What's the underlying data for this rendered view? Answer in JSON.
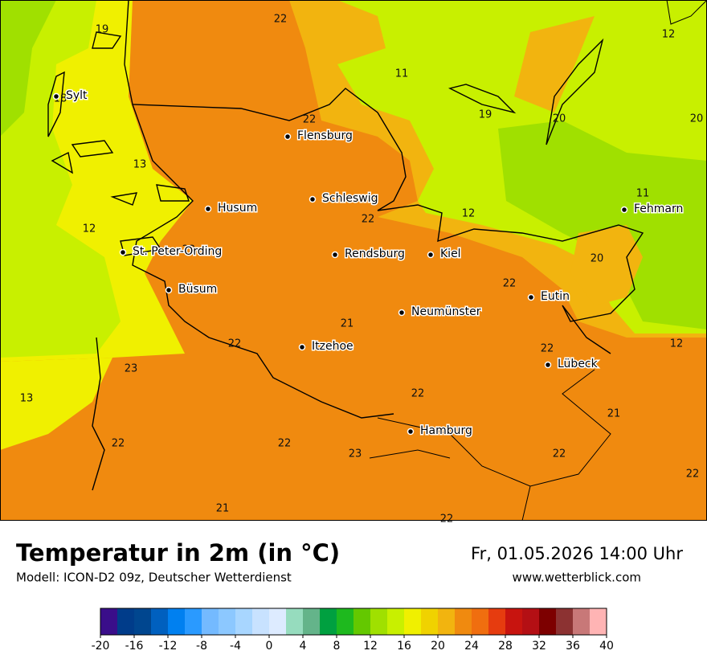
{
  "map": {
    "cities": [
      "Sylt",
      "Flensburg",
      "Schleswig",
      "Husum",
      "St. Peter-Ording",
      "Rendsburg",
      "Kiel",
      "Fehmarn",
      "Eutin",
      "Büsum",
      "Neumünster",
      "Itzehoe",
      "Lübeck",
      "Hamburg"
    ],
    "temperature_labels": [
      22,
      19,
      18,
      11,
      12,
      19,
      20,
      20,
      22,
      13,
      11,
      22,
      12,
      12,
      22,
      20,
      22,
      21,
      22,
      22,
      12,
      23,
      13,
      22,
      21,
      22,
      22,
      23,
      22,
      22,
      21,
      22
    ]
  },
  "footer": {
    "title": "Temperatur in 2m (in °C)",
    "subtitle": "Modell: ICON-D2 09z, Deutscher Wetterdienst",
    "datetime": "Fr, 01.05.2026 14:00 Uhr",
    "website": "www.wetterblick.com"
  },
  "legend": {
    "colors": [
      "#3a0e8a",
      "#003c8a",
      "#00468f",
      "#0060bf",
      "#0080f0",
      "#2a9aff",
      "#74baff",
      "#8cc8ff",
      "#a8d6ff",
      "#c8e2ff",
      "#ddebff",
      "#96dcbe",
      "#64b48a",
      "#00a040",
      "#1eb91e",
      "#64c800",
      "#a0e000",
      "#c8f000",
      "#f0f000",
      "#f0d200",
      "#f2b40f",
      "#f08a0f",
      "#f06e0f",
      "#e63c0f",
      "#c8140f",
      "#b40f14",
      "#7d0000",
      "#8c3232",
      "#c87878",
      "#ffb4b4"
    ],
    "ticks": [
      -20,
      -16,
      -12,
      -8,
      -4,
      0,
      4,
      8,
      12,
      16,
      20,
      24,
      28,
      32,
      36,
      40
    ]
  }
}
